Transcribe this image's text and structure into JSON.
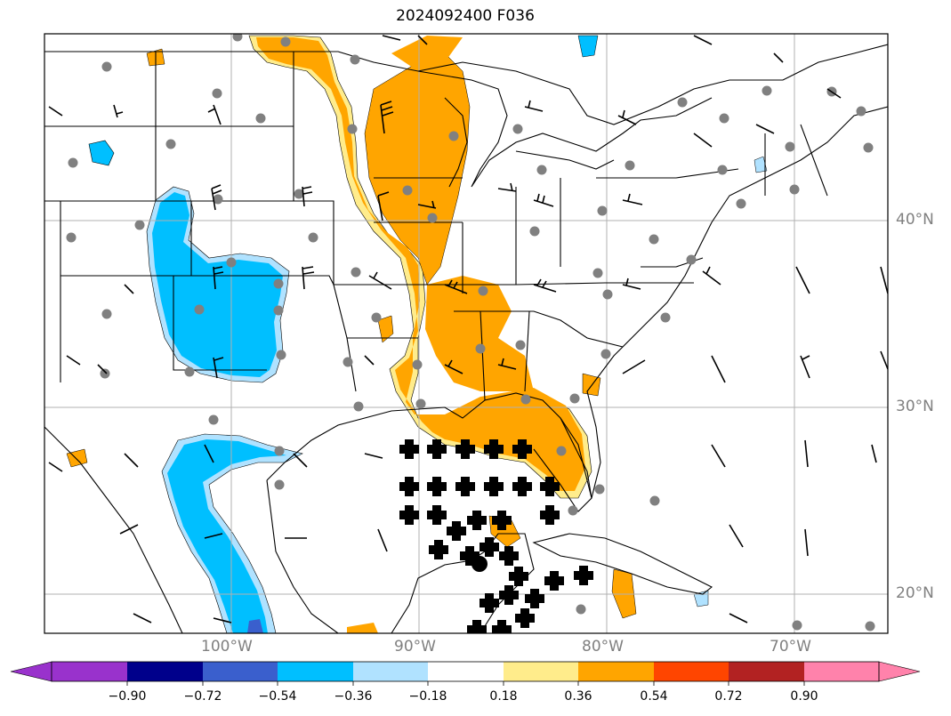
{
  "title": "2024092400 F036",
  "lat_labels": [
    "40°N",
    "30°N",
    "20°N"
  ],
  "lon_labels": [
    "100°W",
    "90°W",
    "80°W",
    "70°W"
  ],
  "colorbar": {
    "colors": [
      "#9932cc",
      "#00008b",
      "#3a5fcd",
      "#00bfff",
      "#b0e2ff",
      "#ffffff",
      "#ffec8b",
      "#ffa500",
      "#ff4500",
      "#b22222",
      "#ff82ab"
    ],
    "tick_labels": [
      "−0.90",
      "−0.72",
      "−0.54",
      "−0.36",
      "−0.18",
      "0.18",
      "0.36",
      "0.54",
      "0.72",
      "0.90"
    ]
  },
  "colors": {
    "positive": "#ffa500",
    "positive_edge": "#ffec8b",
    "negative": "#00bfff",
    "negative_edge": "#b0e2ff",
    "station": "#808080"
  }
}
